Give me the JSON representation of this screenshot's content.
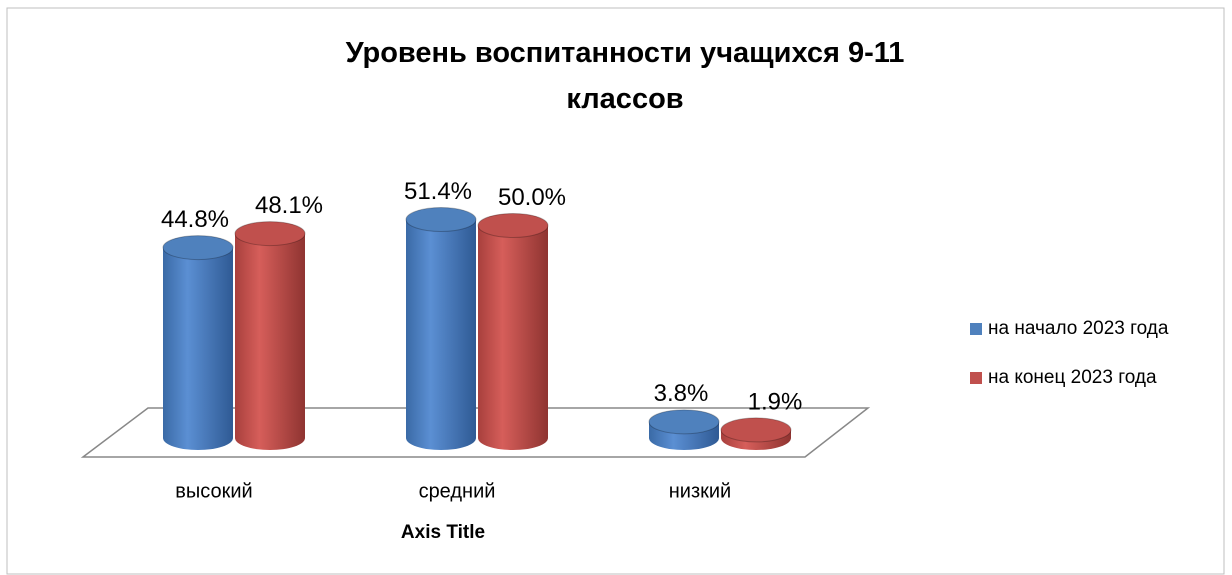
{
  "chart_data": {
    "type": "bar3d",
    "title": "Уровень воспитанности учащихся 9-11 классов",
    "x_label": "Axis Title",
    "categories": [
      "высокий",
      "средний",
      "низкий"
    ],
    "series": [
      {
        "name": "на начало 2023 года",
        "color": "#4f81bd",
        "values": [
          44.8,
          51.4,
          3.8
        ],
        "value_labels": [
          "44.8%",
          "51.4%",
          "3.8%"
        ]
      },
      {
        "name": "на конец 2023 года",
        "color": "#c0504d",
        "values": [
          48.1,
          50.0,
          1.9
        ],
        "value_labels": [
          "48.1%",
          "50.0%",
          "1.9%"
        ]
      }
    ],
    "ylim": [
      0,
      60
    ],
    "legend": "right"
  }
}
